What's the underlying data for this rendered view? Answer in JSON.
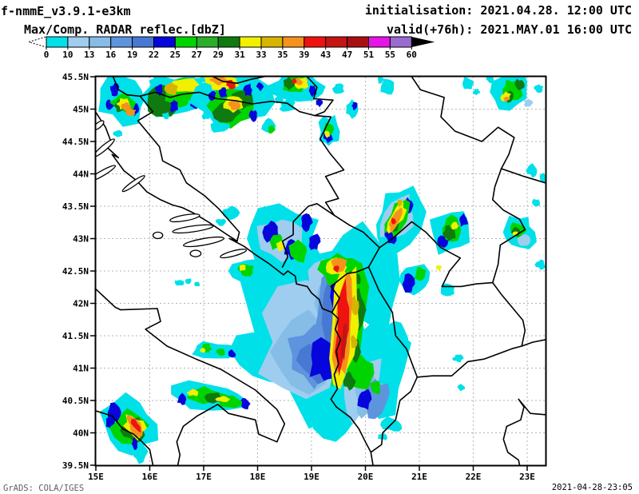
{
  "header": {
    "model_title": "f-nmmE_v3.9.1-e3km",
    "init_line": "initialisation: 2021.04.28. 12:00 UTC",
    "valid_line": "valid(+76h): 2021.MAY.01 16:00 UTC"
  },
  "legend": {
    "title": "Max/Comp. RADAR reflec.[dbZ]"
  },
  "axes": {
    "lat_tick_labels": [
      "45.5N",
      "45N",
      "44.5N",
      "44N",
      "43.5N",
      "43N",
      "42.5N",
      "42N",
      "41.5N",
      "41N",
      "40.5N",
      "40N",
      "39.5N"
    ],
    "lon_tick_labels": [
      "15E",
      "16E",
      "17E",
      "18E",
      "19E",
      "20E",
      "21E",
      "22E",
      "23E"
    ]
  },
  "footer": {
    "left": "GrADS: COLA/IGES",
    "right": "2021-04-28-23:05"
  },
  "chart_data": {
    "type": "heatmap",
    "title": "Max/Comp. RADAR reflec.[dbZ]",
    "units": "dbZ",
    "lon_range_e": [
      15.0,
      23.34
    ],
    "lat_range_n": [
      39.5,
      45.5
    ],
    "grid": "dashed 0.5deg lat / 1deg lon",
    "levels_dbz": [
      0,
      10,
      13,
      16,
      19,
      22,
      25,
      27,
      29,
      31,
      33,
      35,
      39,
      43,
      47,
      51,
      55,
      60
    ],
    "palette": [
      "#00E0E8",
      "#9FCDEF",
      "#86BDE7",
      "#5E94DE",
      "#4879D2",
      "#0505DC",
      "#00D400",
      "#2AAE2A",
      "#0F7A0F",
      "#F0F000",
      "#D8B400",
      "#F5921E",
      "#EF1310",
      "#C51414",
      "#A81010",
      "#E614E6",
      "#9A6BCE"
    ],
    "below_min_arrow": "open-dashed-left",
    "above_max_arrow": "solid-black-right",
    "cells": [
      [
        18.95,
        41.7,
        1.3,
        1.3,
        0,
        0
      ],
      [
        19.95,
        42.35,
        0.72,
        0.8,
        0,
        0
      ],
      [
        20.25,
        40.95,
        0.55,
        0.7,
        0,
        0
      ],
      [
        18.3,
        41.15,
        0.7,
        0.4,
        10,
        0
      ],
      [
        19.45,
        40.3,
        0.42,
        0.4,
        0,
        0
      ],
      [
        20.55,
        41.45,
        0.22,
        0.28,
        0,
        0
      ],
      [
        18.9,
        41.4,
        0.85,
        0.8,
        0,
        1
      ],
      [
        19.38,
        42.15,
        0.45,
        0.62,
        0,
        1
      ],
      [
        19.95,
        40.7,
        0.32,
        0.48,
        15,
        1
      ],
      [
        18.95,
        41.25,
        0.6,
        0.55,
        0,
        2
      ],
      [
        19.4,
        42.0,
        0.3,
        0.52,
        0,
        2
      ],
      [
        20.05,
        40.6,
        0.22,
        0.35,
        15,
        2
      ],
      [
        19.05,
        41.2,
        0.46,
        0.42,
        0,
        3
      ],
      [
        19.32,
        41.85,
        0.26,
        0.6,
        0,
        3
      ],
      [
        20.18,
        40.52,
        0.2,
        0.28,
        20,
        3
      ],
      [
        19.12,
        41.12,
        0.36,
        0.3,
        0,
        4
      ],
      [
        19.38,
        41.95,
        0.2,
        0.48,
        0,
        4
      ],
      [
        19.22,
        41.15,
        0.26,
        0.32,
        15,
        5
      ],
      [
        19.47,
        42.1,
        0.12,
        0.3,
        0,
        5
      ],
      [
        19.5,
        41.5,
        0.1,
        0.3,
        0,
        5
      ],
      [
        19.98,
        40.52,
        0.12,
        0.16,
        0,
        5
      ],
      [
        19.3,
        40.95,
        0.14,
        0.16,
        0,
        5
      ],
      [
        19.66,
        41.7,
        0.34,
        0.95,
        4,
        6
      ],
      [
        19.48,
        42.52,
        0.3,
        0.24,
        0,
        6
      ],
      [
        19.92,
        40.92,
        0.22,
        0.26,
        0,
        6
      ],
      [
        20.18,
        40.7,
        0.1,
        0.1,
        0,
        6
      ],
      [
        19.88,
        41.9,
        0.12,
        0.28,
        0,
        8
      ],
      [
        19.82,
        41.25,
        0.1,
        0.2,
        0,
        8
      ],
      [
        19.78,
        42.38,
        0.12,
        0.13,
        0,
        8
      ],
      [
        19.7,
        40.8,
        0.1,
        0.14,
        0,
        8
      ],
      [
        19.62,
        41.68,
        0.23,
        0.88,
        4,
        9
      ],
      [
        19.46,
        42.56,
        0.2,
        0.14,
        0,
        9
      ],
      [
        19.8,
        41.95,
        0.07,
        0.14,
        0,
        10
      ],
      [
        19.78,
        41.4,
        0.06,
        0.1,
        0,
        10
      ],
      [
        19.6,
        41.65,
        0.16,
        0.8,
        4,
        11
      ],
      [
        19.5,
        42.6,
        0.15,
        0.1,
        0,
        11
      ],
      [
        19.57,
        41.6,
        0.11,
        0.62,
        4,
        12
      ],
      [
        19.46,
        42.53,
        0.05,
        0.05,
        0,
        12
      ],
      [
        19.6,
        41.4,
        0.05,
        0.28,
        4,
        13
      ],
      [
        18.4,
        43.0,
        0.8,
        0.55,
        0,
        0
      ],
      [
        18.45,
        43.0,
        0.5,
        0.36,
        0,
        1
      ],
      [
        18.25,
        43.1,
        0.14,
        0.17,
        0,
        5
      ],
      [
        18.62,
        42.85,
        0.12,
        0.15,
        0,
        5
      ],
      [
        18.9,
        43.25,
        0.1,
        0.12,
        0,
        5
      ],
      [
        19.05,
        42.95,
        0.1,
        0.12,
        0,
        5
      ],
      [
        18.75,
        42.8,
        0.18,
        0.16,
        0,
        6
      ],
      [
        18.35,
        42.95,
        0.12,
        0.12,
        0,
        6
      ],
      [
        18.42,
        42.88,
        0.07,
        0.08,
        0,
        9
      ],
      [
        17.8,
        42.5,
        0.3,
        0.2,
        0,
        0
      ],
      [
        17.78,
        42.52,
        0.14,
        0.1,
        0,
        6
      ],
      [
        17.72,
        42.55,
        0.06,
        0.05,
        0,
        9
      ],
      [
        16.55,
        42.32,
        0.08,
        0.05,
        0,
        0
      ],
      [
        16.72,
        42.34,
        0.06,
        0.04,
        0,
        0
      ],
      [
        16.88,
        42.3,
        0.05,
        0.04,
        0,
        0
      ],
      [
        17.5,
        43.4,
        0.14,
        0.09,
        0,
        0
      ],
      [
        17.32,
        43.25,
        0.09,
        0.06,
        0,
        0
      ],
      [
        17.25,
        41.27,
        0.45,
        0.13,
        3,
        0
      ],
      [
        17.05,
        41.3,
        0.1,
        0.07,
        0,
        6
      ],
      [
        16.98,
        41.28,
        0.05,
        0.04,
        0,
        9
      ],
      [
        17.32,
        41.24,
        0.08,
        0.06,
        0,
        6
      ],
      [
        17.52,
        41.22,
        0.07,
        0.06,
        0,
        5
      ],
      [
        17.15,
        40.55,
        0.72,
        0.22,
        4,
        0
      ],
      [
        16.6,
        40.52,
        0.09,
        0.09,
        0,
        5
      ],
      [
        17.77,
        40.45,
        0.08,
        0.08,
        0,
        5
      ],
      [
        17.0,
        40.58,
        0.34,
        0.12,
        4,
        6
      ],
      [
        17.45,
        40.5,
        0.24,
        0.1,
        4,
        6
      ],
      [
        17.18,
        40.55,
        0.17,
        0.08,
        4,
        8
      ],
      [
        16.8,
        40.62,
        0.12,
        0.05,
        0,
        9
      ],
      [
        17.36,
        40.52,
        0.13,
        0.05,
        0,
        9
      ],
      [
        15.62,
        40.1,
        0.52,
        0.45,
        -35,
        0
      ],
      [
        15.8,
        39.72,
        0.14,
        0.18,
        0,
        0
      ],
      [
        15.34,
        40.32,
        0.11,
        0.13,
        0,
        5
      ],
      [
        15.28,
        40.16,
        0.09,
        0.11,
        0,
        5
      ],
      [
        15.62,
        40.1,
        0.3,
        0.27,
        -35,
        6
      ],
      [
        15.7,
        40.05,
        0.2,
        0.18,
        -35,
        8
      ],
      [
        15.72,
        40.09,
        0.16,
        0.2,
        -35,
        9
      ],
      [
        15.74,
        40.1,
        0.11,
        0.2,
        -35,
        11
      ],
      [
        15.74,
        40.12,
        0.06,
        0.14,
        -35,
        12
      ],
      [
        15.72,
        39.83,
        0.05,
        0.09,
        0,
        5
      ],
      [
        20.48,
        40.12,
        0.2,
        0.1,
        20,
        0
      ],
      [
        20.32,
        39.94,
        0.09,
        0.05,
        0,
        0
      ],
      [
        21.78,
        40.7,
        0.06,
        0.05,
        0,
        0
      ],
      [
        21.72,
        41.15,
        0.09,
        0.06,
        0,
        0
      ],
      [
        20.6,
        43.3,
        0.42,
        0.5,
        25,
        0
      ],
      [
        20.6,
        43.3,
        0.27,
        0.36,
        25,
        1
      ],
      [
        20.48,
        43.05,
        0.11,
        0.16,
        0,
        5
      ],
      [
        20.78,
        43.52,
        0.09,
        0.11,
        0,
        5
      ],
      [
        20.6,
        43.33,
        0.16,
        0.3,
        25,
        6
      ],
      [
        20.55,
        43.25,
        0.1,
        0.18,
        25,
        8
      ],
      [
        20.58,
        43.34,
        0.11,
        0.26,
        25,
        9
      ],
      [
        20.56,
        43.3,
        0.07,
        0.2,
        25,
        11
      ],
      [
        20.52,
        43.27,
        0.04,
        0.05,
        0,
        12
      ],
      [
        20.64,
        43.55,
        0.05,
        0.05,
        0,
        10
      ],
      [
        20.9,
        42.35,
        0.33,
        0.26,
        0,
        0
      ],
      [
        20.8,
        42.3,
        0.11,
        0.14,
        0,
        5
      ],
      [
        21.02,
        42.45,
        0.1,
        0.1,
        0,
        6
      ],
      [
        21.36,
        42.55,
        0.05,
        0.04,
        0,
        9
      ],
      [
        21.52,
        42.2,
        0.13,
        0.09,
        0,
        0
      ],
      [
        21.6,
        43.1,
        0.4,
        0.33,
        0,
        0
      ],
      [
        21.45,
        42.95,
        0.1,
        0.11,
        0,
        5
      ],
      [
        21.82,
        43.28,
        0.08,
        0.09,
        0,
        5
      ],
      [
        21.6,
        43.15,
        0.2,
        0.18,
        0,
        6
      ],
      [
        21.55,
        43.08,
        0.11,
        0.11,
        0,
        8
      ],
      [
        21.66,
        43.2,
        0.06,
        0.06,
        0,
        9
      ],
      [
        22.85,
        43.1,
        0.3,
        0.24,
        0,
        0
      ],
      [
        22.95,
        42.98,
        0.12,
        0.09,
        0,
        1
      ],
      [
        22.82,
        43.12,
        0.14,
        0.12,
        0,
        6
      ],
      [
        22.8,
        43.1,
        0.08,
        0.07,
        0,
        8
      ],
      [
        22.78,
        43.08,
        0.05,
        0.04,
        0,
        9
      ],
      [
        23.25,
        42.6,
        0.09,
        0.07,
        0,
        0
      ],
      [
        23.1,
        44.05,
        0.11,
        0.09,
        0,
        0
      ],
      [
        23.3,
        43.93,
        0.07,
        0.07,
        0,
        0
      ],
      [
        23.17,
        43.55,
        0.07,
        0.06,
        0,
        0
      ],
      [
        15.5,
        45.15,
        0.5,
        0.36,
        0,
        0
      ],
      [
        15.35,
        45.3,
        0.09,
        0.09,
        0,
        5
      ],
      [
        15.72,
        45.0,
        0.08,
        0.09,
        0,
        5
      ],
      [
        15.25,
        45.05,
        0.07,
        0.08,
        0,
        5
      ],
      [
        15.5,
        45.1,
        0.2,
        0.17,
        0,
        6
      ],
      [
        15.45,
        45.05,
        0.1,
        0.09,
        0,
        8
      ],
      [
        15.52,
        45.08,
        0.12,
        0.09,
        0,
        9
      ],
      [
        15.56,
        45.04,
        0.08,
        0.06,
        0,
        11
      ],
      [
        15.4,
        44.62,
        0.08,
        0.05,
        0,
        0
      ],
      [
        16.45,
        45.2,
        0.58,
        0.33,
        0,
        0
      ],
      [
        16.25,
        45.12,
        0.28,
        0.26,
        0,
        8
      ],
      [
        16.55,
        45.25,
        0.28,
        0.22,
        0,
        6
      ],
      [
        16.68,
        45.38,
        0.28,
        0.11,
        0,
        9
      ],
      [
        16.4,
        45.3,
        0.12,
        0.09,
        0,
        10
      ],
      [
        15.65,
        44.95,
        0.09,
        0.06,
        0,
        11
      ],
      [
        16.82,
        45.1,
        0.08,
        0.09,
        0,
        5
      ],
      [
        16.18,
        45.3,
        0.07,
        0.08,
        0,
        5
      ],
      [
        16.45,
        45.05,
        0.07,
        0.1,
        0,
        5
      ],
      [
        17.55,
        45.1,
        0.66,
        0.4,
        0,
        0
      ],
      [
        17.5,
        45.05,
        0.38,
        0.28,
        0,
        6
      ],
      [
        17.42,
        44.95,
        0.22,
        0.16,
        0,
        8
      ],
      [
        17.72,
        45.15,
        0.18,
        0.14,
        0,
        8
      ],
      [
        17.35,
        45.42,
        0.33,
        0.12,
        0,
        9
      ],
      [
        17.55,
        45.08,
        0.18,
        0.11,
        0,
        9
      ],
      [
        17.28,
        45.45,
        0.16,
        0.07,
        0,
        11
      ],
      [
        17.57,
        45.06,
        0.1,
        0.07,
        0,
        11
      ],
      [
        17.5,
        45.38,
        0.09,
        0.06,
        15,
        12
      ],
      [
        17.82,
        45.3,
        0.08,
        0.09,
        0,
        5
      ],
      [
        17.15,
        45.2,
        0.07,
        0.08,
        0,
        5
      ],
      [
        17.92,
        44.9,
        0.07,
        0.08,
        0,
        5
      ],
      [
        17.35,
        45.25,
        0.08,
        0.08,
        0,
        5
      ],
      [
        17.3,
        44.72,
        0.18,
        0.08,
        0,
        0
      ],
      [
        18.75,
        45.35,
        0.48,
        0.21,
        0,
        0
      ],
      [
        18.7,
        45.38,
        0.23,
        0.13,
        0,
        6
      ],
      [
        18.58,
        45.4,
        0.11,
        0.09,
        0,
        8
      ],
      [
        18.82,
        45.4,
        0.12,
        0.09,
        0,
        9
      ],
      [
        18.76,
        45.42,
        0.07,
        0.05,
        0,
        11
      ],
      [
        18.68,
        45.43,
        0.04,
        0.04,
        0,
        12
      ],
      [
        19.02,
        45.28,
        0.07,
        0.08,
        0,
        5
      ],
      [
        18.55,
        45.05,
        0.14,
        0.09,
        0,
        0
      ],
      [
        19.32,
        44.65,
        0.18,
        0.24,
        0,
        0
      ],
      [
        19.3,
        44.6,
        0.09,
        0.11,
        0,
        5
      ],
      [
        19.32,
        44.7,
        0.09,
        0.1,
        0,
        6
      ],
      [
        19.29,
        44.61,
        0.05,
        0.05,
        0,
        9
      ],
      [
        18.2,
        44.75,
        0.12,
        0.1,
        0,
        0
      ],
      [
        18.25,
        44.68,
        0.07,
        0.07,
        0,
        6
      ],
      [
        19.75,
        45.0,
        0.12,
        0.12,
        0,
        0
      ],
      [
        19.8,
        45.05,
        0.05,
        0.06,
        0,
        5
      ],
      [
        19.5,
        45.32,
        0.1,
        0.08,
        0,
        0
      ],
      [
        20.42,
        45.35,
        0.13,
        0.13,
        0,
        0
      ],
      [
        20.28,
        45.45,
        0.06,
        0.05,
        0,
        0
      ],
      [
        21.9,
        45.4,
        0.11,
        0.09,
        0,
        0
      ],
      [
        22.06,
        45.27,
        0.06,
        0.05,
        0,
        0
      ],
      [
        22.7,
        45.28,
        0.36,
        0.26,
        -30,
        0
      ],
      [
        22.72,
        45.3,
        0.19,
        0.15,
        -30,
        6
      ],
      [
        22.64,
        45.2,
        0.09,
        0.09,
        0,
        8
      ],
      [
        22.86,
        45.38,
        0.08,
        0.08,
        0,
        8
      ],
      [
        22.6,
        45.19,
        0.09,
        0.07,
        0,
        9
      ],
      [
        22.62,
        45.16,
        0.05,
        0.04,
        0,
        11
      ],
      [
        23.02,
        45.1,
        0.08,
        0.06,
        0,
        1
      ],
      [
        23.22,
        45.32,
        0.08,
        0.06,
        0,
        0
      ],
      [
        22.32,
        45.46,
        0.07,
        0.05,
        0,
        0
      ],
      [
        16.05,
        45.42,
        0.07,
        0.05,
        0,
        0
      ],
      [
        16.95,
        45.45,
        0.08,
        0.05,
        0,
        0
      ],
      [
        18.2,
        45.3,
        0.1,
        0.07,
        0,
        0
      ],
      [
        18.4,
        45.15,
        0.08,
        0.06,
        0,
        0
      ],
      [
        17.05,
        44.9,
        0.08,
        0.06,
        0,
        0
      ],
      [
        16.3,
        44.9,
        0.07,
        0.05,
        0,
        0
      ],
      [
        19.15,
        45.1,
        0.07,
        0.06,
        0,
        5
      ],
      [
        18.05,
        45.35,
        0.07,
        0.06,
        0,
        5
      ]
    ]
  }
}
